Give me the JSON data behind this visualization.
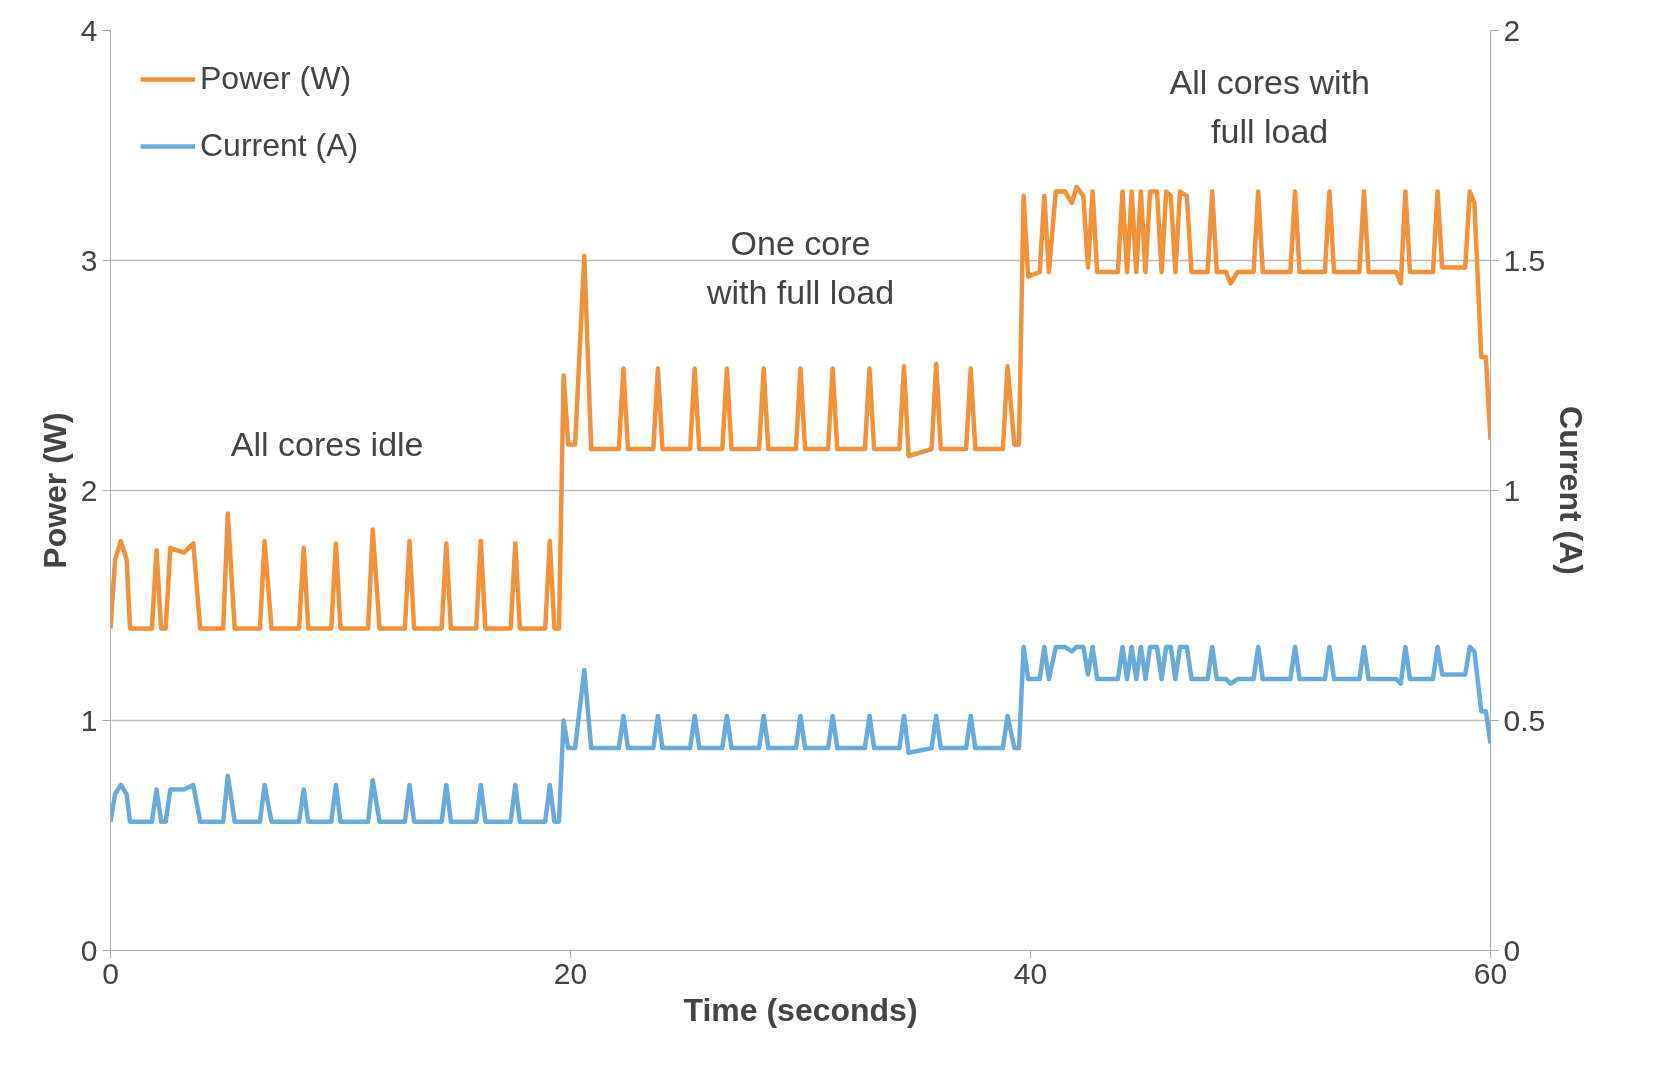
{
  "chart_data": {
    "type": "line",
    "xlabel": "Time (seconds)",
    "ylabel": "Power (W)",
    "y2label": "Current (A)",
    "x": [
      0,
      0.2,
      0.45,
      0.7,
      0.85,
      1.8,
      2.0,
      2.2,
      2.4,
      2.6,
      3.2,
      3.6,
      3.9,
      4.9,
      5.1,
      5.4,
      6.5,
      6.7,
      7.0,
      8.2,
      8.4,
      8.6,
      9.6,
      9.8,
      10.0,
      11.2,
      11.4,
      11.7,
      12.8,
      13.0,
      13.2,
      14.4,
      14.6,
      14.8,
      15.9,
      16.1,
      16.3,
      17.4,
      17.6,
      17.8,
      18.9,
      19.1,
      19.3,
      19.5,
      19.7,
      19.9,
      20.2,
      20.6,
      20.9,
      22.1,
      22.3,
      22.5,
      23.6,
      23.8,
      24.0,
      25.2,
      25.4,
      25.6,
      26.6,
      26.8,
      27.0,
      28.2,
      28.4,
      28.6,
      29.8,
      30.0,
      30.2,
      31.2,
      31.4,
      31.6,
      32.8,
      33.0,
      33.2,
      34.3,
      34.5,
      34.7,
      35.7,
      35.9,
      36.1,
      37.2,
      37.4,
      37.6,
      38.8,
      39.0,
      39.3,
      39.5,
      39.7,
      39.9,
      40.4,
      40.6,
      40.8,
      41.1,
      41.5,
      41.8,
      42.0,
      42.3,
      42.5,
      42.7,
      42.9,
      43.8,
      44.0,
      44.2,
      44.4,
      44.6,
      44.8,
      45.0,
      45.2,
      45.5,
      45.7,
      45.9,
      46.1,
      46.3,
      46.5,
      46.8,
      47.0,
      47.7,
      47.9,
      48.1,
      48.5,
      48.7,
      49.0,
      49.7,
      49.9,
      50.1,
      51.3,
      51.5,
      51.7,
      52.8,
      53.0,
      53.2,
      54.3,
      54.5,
      54.7,
      55.9,
      56.1,
      56.3,
      56.5,
      57.5,
      57.7,
      57.9,
      58.9,
      59.1,
      59.3,
      59.6,
      59.8,
      60.0
    ],
    "series": [
      {
        "name": "Power (W)",
        "color": "#f39139",
        "values": [
          1.4,
          1.7,
          1.78,
          1.7,
          1.4,
          1.4,
          1.74,
          1.4,
          1.4,
          1.75,
          1.73,
          1.77,
          1.4,
          1.4,
          1.9,
          1.4,
          1.4,
          1.78,
          1.4,
          1.4,
          1.75,
          1.4,
          1.4,
          1.77,
          1.4,
          1.4,
          1.83,
          1.4,
          1.4,
          1.78,
          1.4,
          1.4,
          1.77,
          1.4,
          1.4,
          1.78,
          1.4,
          1.4,
          1.77,
          1.4,
          1.4,
          1.78,
          1.4,
          1.4,
          2.5,
          2.2,
          2.2,
          3.02,
          2.18,
          2.18,
          2.53,
          2.18,
          2.18,
          2.53,
          2.18,
          2.18,
          2.53,
          2.18,
          2.18,
          2.53,
          2.18,
          2.18,
          2.53,
          2.18,
          2.18,
          2.53,
          2.18,
          2.18,
          2.53,
          2.18,
          2.18,
          2.53,
          2.18,
          2.18,
          2.54,
          2.15,
          2.18,
          2.55,
          2.18,
          2.18,
          2.53,
          2.18,
          2.18,
          2.54,
          2.2,
          2.2,
          3.28,
          2.93,
          2.95,
          3.28,
          2.95,
          3.3,
          3.3,
          3.25,
          3.32,
          3.28,
          2.97,
          3.3,
          2.95,
          2.95,
          3.3,
          2.95,
          3.3,
          2.95,
          3.3,
          2.95,
          3.3,
          3.3,
          2.95,
          3.3,
          3.28,
          2.95,
          3.3,
          3.28,
          2.95,
          2.95,
          3.3,
          2.95,
          2.95,
          2.9,
          2.95,
          2.95,
          3.3,
          2.95,
          2.95,
          3.3,
          2.95,
          2.95,
          3.3,
          2.95,
          2.95,
          3.3,
          2.95,
          2.95,
          2.9,
          3.3,
          2.95,
          2.95,
          3.3,
          2.97,
          2.97,
          3.3,
          3.25,
          2.58,
          2.58,
          2.22
        ]
      },
      {
        "name": "Current (A)",
        "color": "#69aadd",
        "axis": "y2",
        "values": [
          0.28,
          0.34,
          0.36,
          0.34,
          0.28,
          0.28,
          0.35,
          0.28,
          0.28,
          0.35,
          0.35,
          0.36,
          0.28,
          0.28,
          0.38,
          0.28,
          0.28,
          0.36,
          0.28,
          0.28,
          0.35,
          0.28,
          0.28,
          0.36,
          0.28,
          0.28,
          0.37,
          0.28,
          0.28,
          0.36,
          0.28,
          0.28,
          0.36,
          0.28,
          0.28,
          0.36,
          0.28,
          0.28,
          0.36,
          0.28,
          0.28,
          0.36,
          0.28,
          0.28,
          0.5,
          0.44,
          0.44,
          0.61,
          0.44,
          0.44,
          0.51,
          0.44,
          0.44,
          0.51,
          0.44,
          0.44,
          0.51,
          0.44,
          0.44,
          0.51,
          0.44,
          0.44,
          0.51,
          0.44,
          0.44,
          0.51,
          0.44,
          0.44,
          0.51,
          0.44,
          0.44,
          0.51,
          0.44,
          0.44,
          0.51,
          0.43,
          0.44,
          0.51,
          0.44,
          0.44,
          0.51,
          0.44,
          0.44,
          0.51,
          0.44,
          0.44,
          0.66,
          0.59,
          0.59,
          0.66,
          0.59,
          0.66,
          0.66,
          0.65,
          0.66,
          0.66,
          0.6,
          0.66,
          0.59,
          0.59,
          0.66,
          0.59,
          0.66,
          0.59,
          0.66,
          0.59,
          0.66,
          0.66,
          0.59,
          0.66,
          0.66,
          0.59,
          0.66,
          0.66,
          0.59,
          0.59,
          0.66,
          0.59,
          0.59,
          0.58,
          0.59,
          0.59,
          0.66,
          0.59,
          0.59,
          0.66,
          0.59,
          0.59,
          0.66,
          0.59,
          0.59,
          0.66,
          0.59,
          0.59,
          0.58,
          0.66,
          0.59,
          0.59,
          0.66,
          0.6,
          0.6,
          0.66,
          0.65,
          0.52,
          0.52,
          0.45
        ]
      }
    ],
    "xlim": [
      0,
      60
    ],
    "xticks": [
      0,
      20,
      40,
      60
    ],
    "ylim": [
      0,
      4
    ],
    "yticks": [
      0,
      1,
      2,
      3,
      4
    ],
    "y2lim": [
      0,
      2
    ],
    "y2ticks": [
      0,
      0.5,
      1,
      1.5,
      2
    ],
    "grid": "y",
    "legend": "top left",
    "line_style": "solid",
    "marker": "none",
    "annotations": [
      "All cores idle",
      "One core\nwith full load",
      "All cores with\nfull load"
    ]
  }
}
